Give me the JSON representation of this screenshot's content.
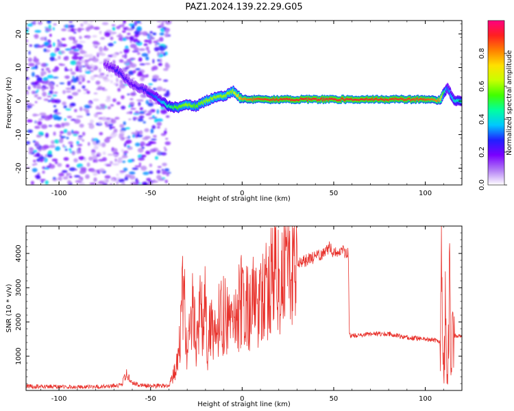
{
  "figure_title": "PAZ1.2024.139.22.29.G05",
  "chart_data": [
    {
      "type": "heatmap",
      "xlabel": "Height of straight line (km)",
      "ylabel": "Frequency (Hz)",
      "xlim": [
        -118,
        120
      ],
      "ylim": [
        -25,
        24
      ],
      "x_ticks": [
        -100,
        -50,
        0,
        50,
        100
      ],
      "y_ticks": [
        -20,
        -10,
        0,
        10,
        20
      ],
      "colorbar": {
        "label": "Normalized spectral amplitude",
        "range": [
          0.0,
          1.0
        ],
        "ticks": [
          0.0,
          0.2,
          0.4,
          0.6,
          0.8
        ],
        "colormap": "rainbow",
        "colors": [
          "#ffffff",
          "#b27cf5",
          "#7a00ff",
          "#2020ff",
          "#00c8ff",
          "#00ffa0",
          "#40ff00",
          "#c8ff00",
          "#ffe000",
          "#ff8000",
          "#ff2020",
          "#ff0080"
        ]
      },
      "ridge": {
        "x": [
          -75,
          -68,
          -60,
          -52,
          -44,
          -40,
          -35,
          -30,
          -25,
          -20,
          -15,
          -10,
          -5,
          0,
          10,
          20,
          40,
          60,
          80,
          100,
          108,
          112,
          116,
          120
        ],
        "frequency": [
          11,
          9,
          5,
          3,
          0,
          -1.5,
          -2,
          -1,
          -1.5,
          0,
          1,
          1.5,
          3,
          0.5,
          0.5,
          0.5,
          0.5,
          0.5,
          0.5,
          0.5,
          0.3,
          4,
          0,
          0
        ],
        "amplitude": [
          0.15,
          0.25,
          0.2,
          0.25,
          0.35,
          0.45,
          0.55,
          0.6,
          0.55,
          0.6,
          0.6,
          0.6,
          0.6,
          0.8,
          0.88,
          0.9,
          0.92,
          0.92,
          0.9,
          0.88,
          0.8,
          0.3,
          0.4,
          0.45
        ]
      },
      "noise_region_x": [
        -118,
        -40
      ],
      "noise_gap_x": [
        -88,
        -65
      ]
    },
    {
      "type": "line",
      "xlabel": "Height of straight line (km)",
      "ylabel": "SNR (10 * v/v)",
      "xlim": [
        -118,
        120
      ],
      "ylim": [
        0,
        4800
      ],
      "x_ticks": [
        -100,
        -50,
        0,
        50,
        100
      ],
      "y_ticks": [
        1000,
        2000,
        3000,
        4000
      ],
      "line_color": "#e8302a",
      "series": [
        {
          "x": [
            -118,
            -100,
            -80,
            -66,
            -63,
            -60,
            -50,
            -40,
            -36,
            -34,
            -32,
            -30,
            -27,
            -25,
            -23,
            -21,
            -20,
            -19,
            -17,
            -15,
            -10,
            -5,
            0,
            5,
            10,
            15,
            20,
            25,
            30,
            35,
            40,
            45,
            48,
            50,
            55,
            58,
            58.5,
            60,
            70,
            80,
            90,
            100,
            108,
            109,
            110,
            111,
            112,
            113,
            114,
            115,
            116,
            120
          ],
          "y": [
            120,
            110,
            100,
            150,
            500,
            200,
            120,
            150,
            700,
            1500,
            2900,
            1000,
            2400,
            1300,
            2700,
            1700,
            4800,
            800,
            2200,
            1800,
            2300,
            1800,
            2700,
            2500,
            2600,
            3100,
            3400,
            3600,
            3700,
            3800,
            3900,
            4000,
            4200,
            4000,
            4050,
            4000,
            1600,
            1600,
            1650,
            1650,
            1550,
            1500,
            1450,
            3200,
            300,
            2000,
            200,
            3000,
            1200,
            2800,
            1600,
            1600
          ]
        }
      ]
    }
  ]
}
